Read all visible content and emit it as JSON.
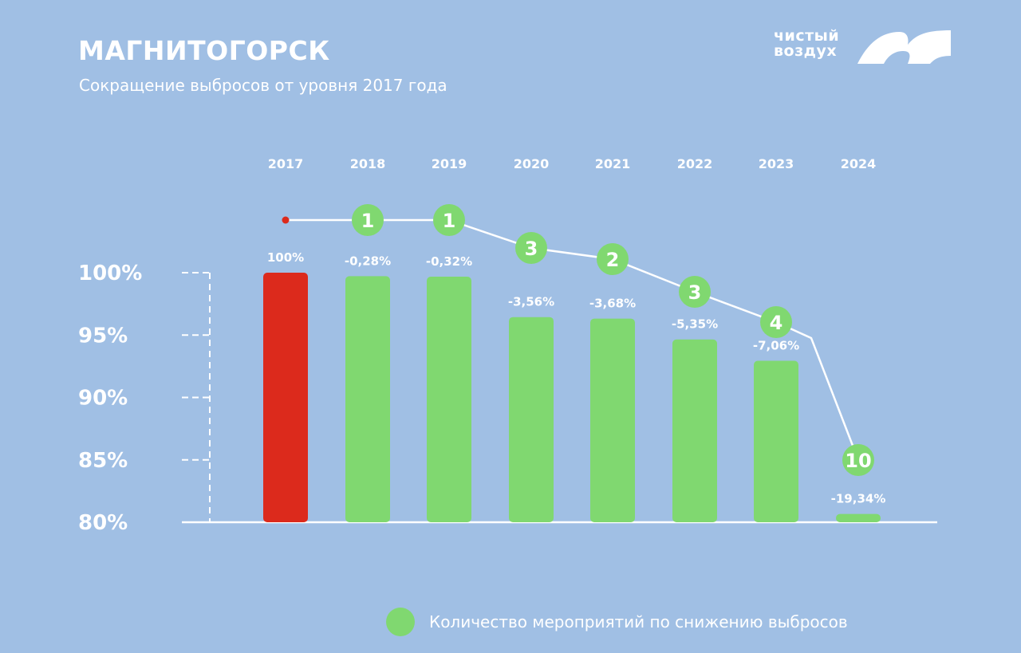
{
  "header": {
    "title": "МАГНИТОГОРСК",
    "subtitle": "Сокращение выбросов от уровня 2017 года"
  },
  "logo": {
    "line1": "чистый",
    "line2": "воздух"
  },
  "legend": {
    "label": "Количество мероприятий по снижению выбросов"
  },
  "colors": {
    "background": "#a0bfe4",
    "base_bar": "#dc2a1c",
    "bar": "#80d870",
    "text": "#ffffff"
  },
  "chart_data": {
    "type": "bar",
    "title": "Сокращение выбросов от уровня 2017 года",
    "categories": [
      "2017",
      "2018",
      "2019",
      "2020",
      "2021",
      "2022",
      "2023",
      "2024"
    ],
    "values": [
      100,
      99.72,
      99.68,
      96.44,
      96.32,
      94.65,
      92.94,
      80.66
    ],
    "data_labels": [
      "100%",
      "-0,28%",
      "-0,32%",
      "-3,56%",
      "-3,68%",
      "-5,35%",
      "-7,06%",
      "-19,34%"
    ],
    "measures_count": [
      null,
      1,
      1,
      3,
      2,
      3,
      4,
      10
    ],
    "y_ticks": [
      "100%",
      "95%",
      "90%",
      "85%",
      "80%"
    ],
    "y_tick_values": [
      100,
      95,
      90,
      85,
      80
    ],
    "ylim": [
      80,
      100
    ],
    "legend_position": "bottom-right"
  }
}
